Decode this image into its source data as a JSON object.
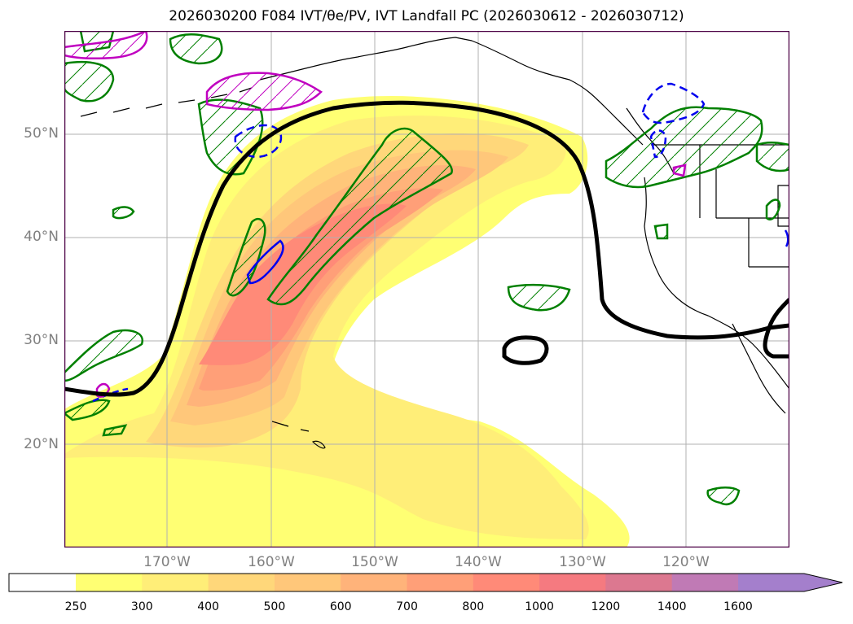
{
  "title": "2026030200 F084 IVT/θe/PV, IVT Landfall PC (2026030612 - 2026030712)",
  "map": {
    "lat_labels": [
      "50°N",
      "40°N",
      "30°N",
      "20°N"
    ],
    "lon_labels": [
      "170°W",
      "160°W",
      "150°W",
      "140°W",
      "130°W",
      "120°W"
    ]
  },
  "colorbar": {
    "labels": [
      "250",
      "300",
      "400",
      "500",
      "600",
      "700",
      "800",
      "1000",
      "1200",
      "1400",
      "1600"
    ],
    "colors": [
      "#ffff73",
      "#ffee78",
      "#ffd77a",
      "#ffc77a",
      "#ffb37a",
      "#ff9f78",
      "#ff8a78",
      "#f57a80",
      "#dc7890",
      "#c07ab5",
      "#a47fcc"
    ]
  },
  "colors": {
    "theta_e": "#008000",
    "pv_neg": "#0000ee",
    "pv_pos": "#c000c0",
    "landfall": "#000000"
  }
}
